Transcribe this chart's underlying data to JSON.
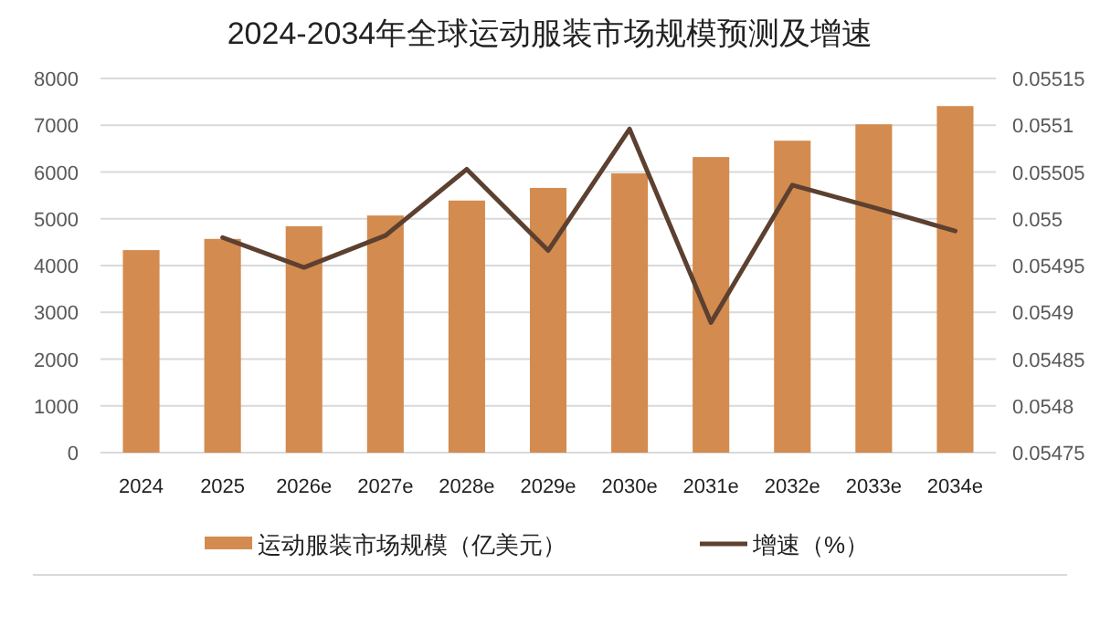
{
  "chart_data": {
    "type": "bar",
    "title": "2024-2034年全球运动服装市场规模预测及增速",
    "categories": [
      "2024",
      "2025",
      "2026e",
      "2027e",
      "2028e",
      "2029e",
      "2030e",
      "2031e",
      "2032e",
      "2033e",
      "2034e"
    ],
    "series": [
      {
        "name": "运动服装市场规模（亿美元）",
        "color": "#d38b4f",
        "values": [
          4330,
          4570,
          4840,
          5070,
          5390,
          5660,
          5970,
          6320,
          6670,
          7020,
          7410
        ]
      },
      {
        "name": "增速（%）",
        "type": "line",
        "axis": "y2",
        "color": "#5c4030",
        "values": [
          null,
          0.05498,
          0.054948,
          0.054982,
          0.055053,
          0.054966,
          0.055096,
          0.054889,
          0.055036,
          0.055012,
          0.054987
        ]
      }
    ],
    "ylim": [
      0,
      8000
    ],
    "yticks": [
      0,
      1000,
      2000,
      3000,
      4000,
      5000,
      6000,
      7000,
      8000
    ],
    "y2lim": [
      0.05475,
      0.05515
    ],
    "y2ticks": [
      0.05475,
      0.0548,
      0.05485,
      0.0549,
      0.05495,
      0.055,
      0.05505,
      0.0551,
      0.05515
    ],
    "grid": "y",
    "legend": "bottom",
    "marker": "none",
    "line_style": "solid"
  }
}
